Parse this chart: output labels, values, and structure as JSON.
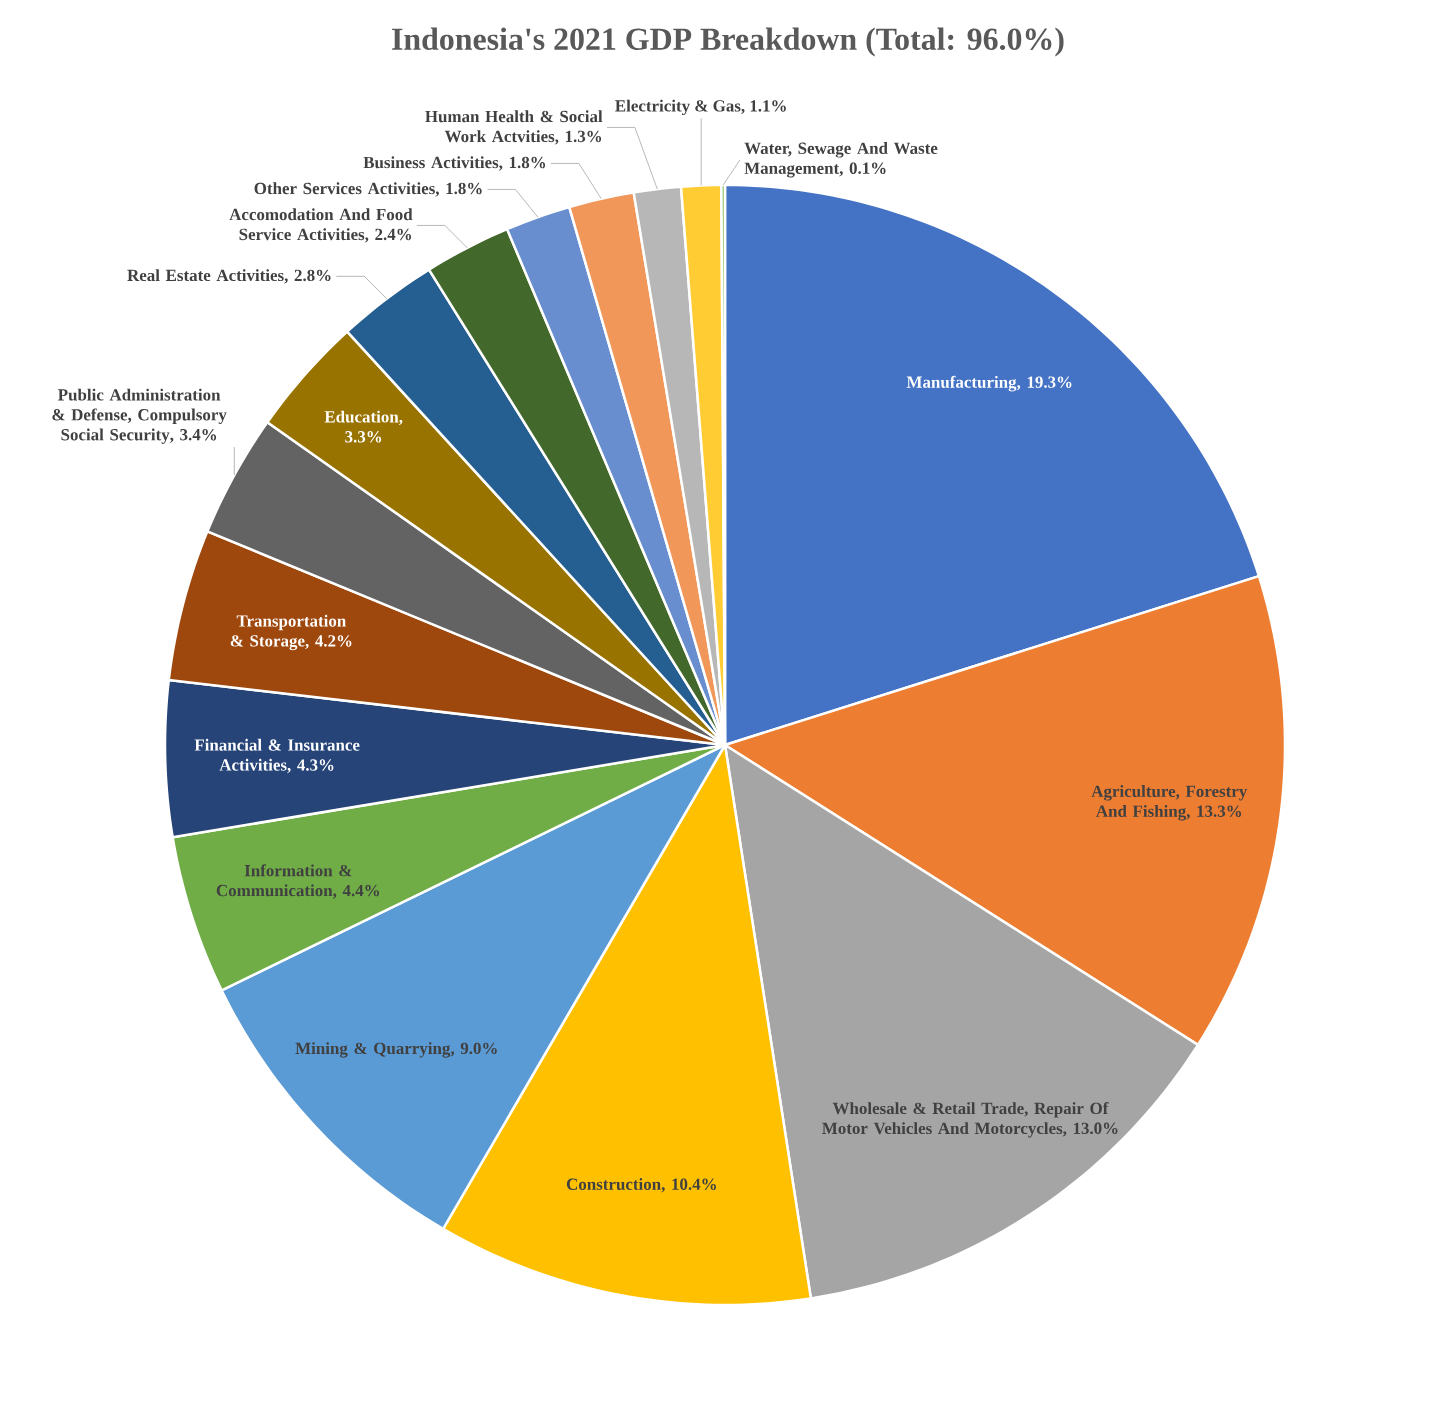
{
  "chart_data": {
    "type": "pie",
    "title": "Indonesia's 2021 GDP Breakdown (Total: 96.0%)",
    "categories": [
      "Manufacturing",
      "Agriculture, Forestry And Fishing",
      "Wholesale & Retail Trade, Repair Of Motor Vehicles And Motorcycles",
      "Construction",
      "Mining & Quarrying",
      "Information & Communication",
      "Financial & Insurance Activities",
      "Transportation & Storage",
      "Public Administration & Defense, Compulsory Social Security",
      "Education",
      "Real Estate Activities",
      "Accomodation And Food Service Activities",
      "Other Services Activities",
      "Business Activities",
      "Human Health & Social Work Actvities",
      "Electricity & Gas",
      "Water, Sewage And Waste Management"
    ],
    "values": [
      19.3,
      13.3,
      13.0,
      10.4,
      9.0,
      4.4,
      4.3,
      4.2,
      3.4,
      3.3,
      2.8,
      2.4,
      1.8,
      1.8,
      1.3,
      1.1,
      0.1
    ],
    "value_labels": [
      ", 19.3%",
      ", 13.3%",
      ", 13.0%",
      ", 10.4%",
      ", 9.0%",
      ", 4.4%",
      ", 4.3%",
      ", 4.2%",
      ", 3.4%",
      ", 3.3%",
      ", 2.8%",
      ", 2.4%",
      ", 1.8%",
      ", 1.8%",
      ", 1.3%",
      ", 1.1%",
      ", 0.1%"
    ],
    "colors": [
      "#4472c4",
      "#ed7d31",
      "#a5a5a5",
      "#ffc000",
      "#5b9bd5",
      "#70ad47",
      "#264478",
      "#9e480e",
      "#636363",
      "#997300",
      "#255e91",
      "#43682b",
      "#698ed0",
      "#f1975a",
      "#b7b7b7",
      "#ffcd33",
      "#8cc168"
    ]
  }
}
